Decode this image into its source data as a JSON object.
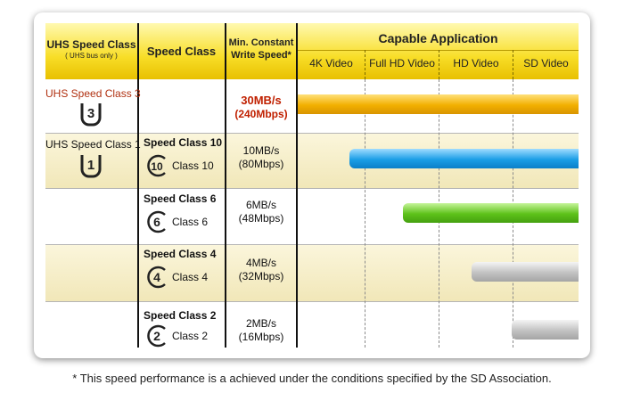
{
  "header": {
    "col1_title": "UHS Speed Class",
    "col1_sub": "( UHS bus only )",
    "col2_title": "Speed Class",
    "col3_title": "Min. Constant Write Speed*",
    "apps_title": "Capable Application",
    "apps": [
      "4K Video",
      "Full HD Video",
      "HD Video",
      "SD Video"
    ]
  },
  "rows": [
    {
      "uhs_label": "UHS Speed Class 3",
      "uhs_digit": "3",
      "speed_label": "",
      "speed_digit": "",
      "speed_sub": "",
      "speed_main": "30MB/s",
      "speed_mbps": "(240Mbps)",
      "bar_color": "gold"
    },
    {
      "uhs_label": "UHS Speed Class 1",
      "uhs_digit": "1",
      "speed_label": "Speed Class 10",
      "speed_digit": "10",
      "speed_sub": "Class 10",
      "speed_main": "10MB/s",
      "speed_mbps": "(80Mbps)",
      "bar_color": "blue"
    },
    {
      "uhs_label": "",
      "uhs_digit": "",
      "speed_label": "Speed Class 6",
      "speed_digit": "6",
      "speed_sub": "Class 6",
      "speed_main": "6MB/s",
      "speed_mbps": "(48Mbps)",
      "bar_color": "green"
    },
    {
      "uhs_label": "",
      "uhs_digit": "",
      "speed_label": "Speed Class 4",
      "speed_digit": "4",
      "speed_sub": "Class 4",
      "speed_main": "4MB/s",
      "speed_mbps": "(32Mbps)",
      "bar_color": "gray"
    },
    {
      "uhs_label": "",
      "uhs_digit": "",
      "speed_label": "Speed Class 2",
      "speed_digit": "2",
      "speed_sub": "Class 2",
      "speed_main": "2MB/s",
      "speed_mbps": "(16Mbps)",
      "bar_color": "gray"
    }
  ],
  "colors": {
    "gold": "#f2b000",
    "blue": "#1a9ee6",
    "green": "#5ec21a",
    "gray": "#b9b9b9",
    "uhs3_text": "#b03010"
  },
  "footnote": "* This speed performance is a achieved under the conditions specified by the SD Association."
}
